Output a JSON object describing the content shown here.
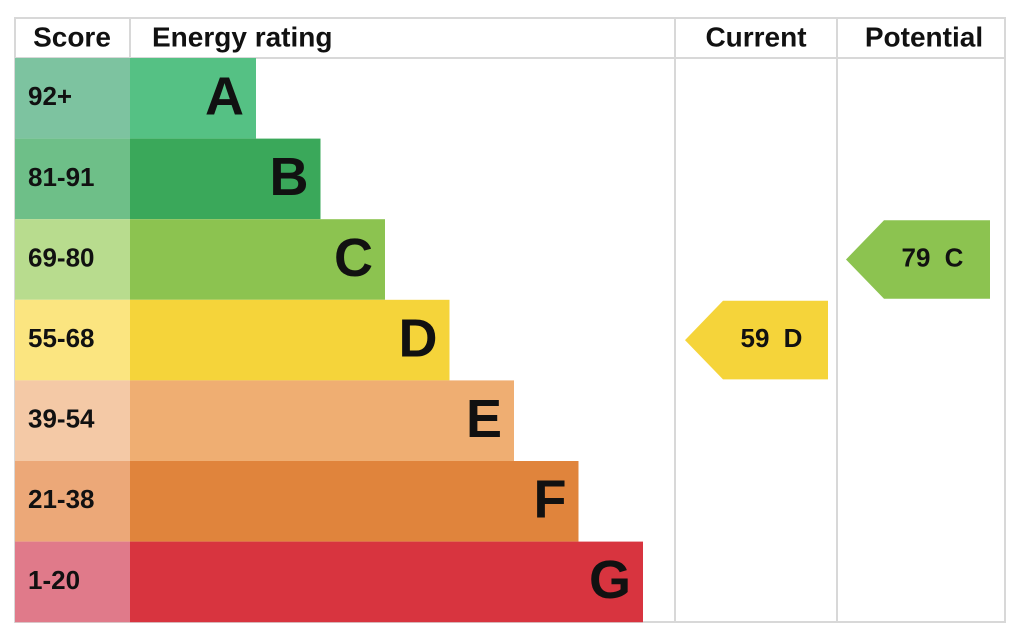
{
  "header": {
    "score": "Score",
    "rating": "Energy rating",
    "current": "Current",
    "potential": "Potential"
  },
  "bands": [
    {
      "score": "92+",
      "letter": "A",
      "color": "#55c184",
      "score_color": "#7dc3a0"
    },
    {
      "score": "81-91",
      "letter": "B",
      "color": "#3aa85a",
      "score_color": "#6ebf88"
    },
    {
      "score": "69-80",
      "letter": "C",
      "color": "#8cc350",
      "score_color": "#b8dc8e"
    },
    {
      "score": "55-68",
      "letter": "D",
      "color": "#f5d43a",
      "score_color": "#fbe580"
    },
    {
      "score": "39-54",
      "letter": "E",
      "color": "#efae72",
      "score_color": "#f4c9a6"
    },
    {
      "score": "21-38",
      "letter": "F",
      "color": "#e0843c",
      "score_color": "#eca878"
    },
    {
      "score": "1-20",
      "letter": "G",
      "color": "#d8343f",
      "score_color": "#e07a8a"
    }
  ],
  "current": {
    "score": 59,
    "letter": "D"
  },
  "potential": {
    "score": 79,
    "letter": "C"
  }
}
